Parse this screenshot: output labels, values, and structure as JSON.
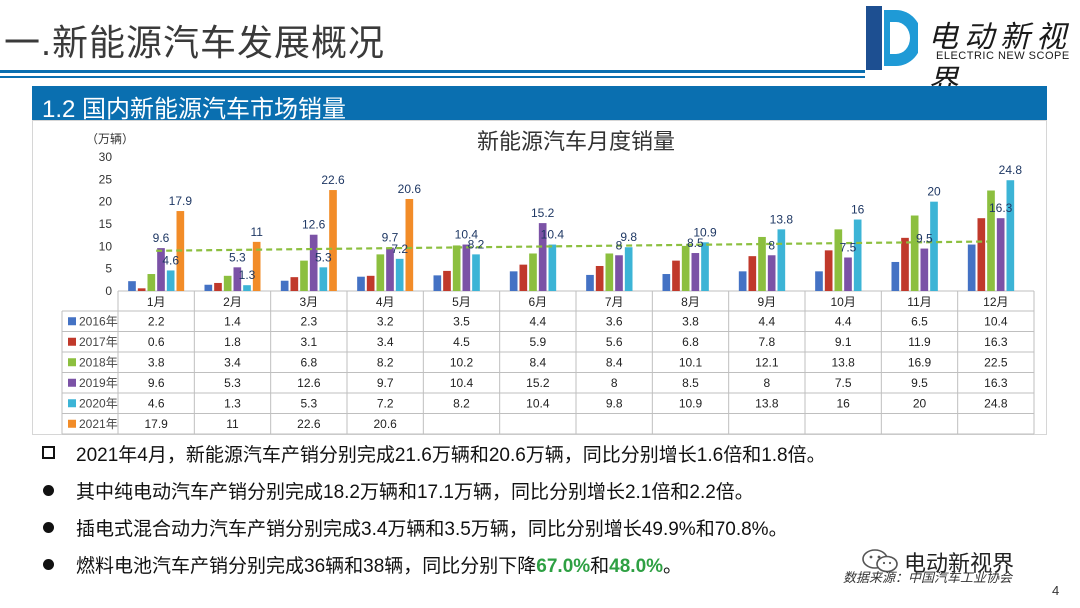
{
  "slide": {
    "title": "一.新能源汽车发展概况",
    "logo_text": "电动新视界",
    "logo_sub": "ELECTRIC NEW SCOPE",
    "section_title": "1.2 国内新能源汽车市场销量",
    "page_number": "4",
    "wechat_name": "电动新视界",
    "source": "数据来源：中国汽车工业协会",
    "colors": {
      "accent": "#0a6fb0",
      "highlight": "#2ea043"
    }
  },
  "bullets": [
    {
      "marker": "square",
      "segments": [
        {
          "text": "2021年4月，新能源汽车产销分别完成21.6万辆和20.6万辆，同比分别增长1.6倍和1.8倍。"
        }
      ]
    },
    {
      "marker": "dot",
      "segments": [
        {
          "text": "其中纯电动汽车产销分别完成18.2万辆和17.1万辆，同比分别增长2.1倍和2.2倍。"
        }
      ]
    },
    {
      "marker": "dot",
      "segments": [
        {
          "text": "插电式混合动力汽车产销分别完成3.4万辆和3.5万辆，同比分别增长49.9%和70.8%。"
        }
      ]
    },
    {
      "marker": "dot",
      "segments": [
        {
          "text": "燃料电池汽车产销分别完成36辆和38辆，同比分别下降"
        },
        {
          "text": "67.0%",
          "highlight": true
        },
        {
          "text": "和"
        },
        {
          "text": "48.0%",
          "highlight": true
        },
        {
          "text": "。"
        }
      ]
    }
  ],
  "chart_data": {
    "type": "bar",
    "title": "新能源汽车月度销量",
    "unit_label": "（万辆）",
    "ylim": [
      0,
      30
    ],
    "yticks": [
      0,
      5,
      10,
      15,
      20,
      25,
      30
    ],
    "categories": [
      "1月",
      "2月",
      "3月",
      "4月",
      "5月",
      "6月",
      "7月",
      "8月",
      "9月",
      "10月",
      "11月",
      "12月"
    ],
    "series": [
      {
        "name": "2016年",
        "color": "#4472c4",
        "values": [
          2.2,
          1.4,
          2.3,
          3.2,
          3.5,
          4.4,
          3.6,
          3.8,
          4.4,
          4.4,
          6.5,
          10.4
        ],
        "labeled": false
      },
      {
        "name": "2017年",
        "color": "#c0392b",
        "values": [
          0.6,
          1.8,
          3.1,
          3.4,
          4.5,
          5.9,
          5.6,
          6.8,
          7.8,
          9.1,
          11.9,
          16.3
        ],
        "labeled": false
      },
      {
        "name": "2018年",
        "color": "#8cbf3f",
        "values": [
          3.8,
          3.4,
          6.8,
          8.2,
          10.2,
          8.4,
          8.4,
          10.1,
          12.1,
          13.8,
          16.9,
          22.5
        ],
        "labeled": false
      },
      {
        "name": "2019年",
        "color": "#7b52a6",
        "values": [
          9.6,
          5.3,
          12.6,
          9.7,
          10.4,
          15.2,
          8,
          8.5,
          8,
          7.5,
          9.5,
          16.3
        ],
        "labeled": true
      },
      {
        "name": "2020年",
        "color": "#3cb4d6",
        "values": [
          4.6,
          1.3,
          5.3,
          7.2,
          8.2,
          10.4,
          9.8,
          10.9,
          13.8,
          16,
          20,
          24.8
        ],
        "labeled": true
      },
      {
        "name": "2021年",
        "color": "#f28c28",
        "values": [
          17.9,
          11,
          22.6,
          20.6,
          null,
          null,
          null,
          null,
          null,
          null,
          null,
          null
        ],
        "labeled": true
      }
    ],
    "trendline": {
      "series": "2019年",
      "style": "dashed",
      "color": "#8cbf3f"
    },
    "data_table": true,
    "grid": false,
    "legend": "data-table-rows"
  }
}
